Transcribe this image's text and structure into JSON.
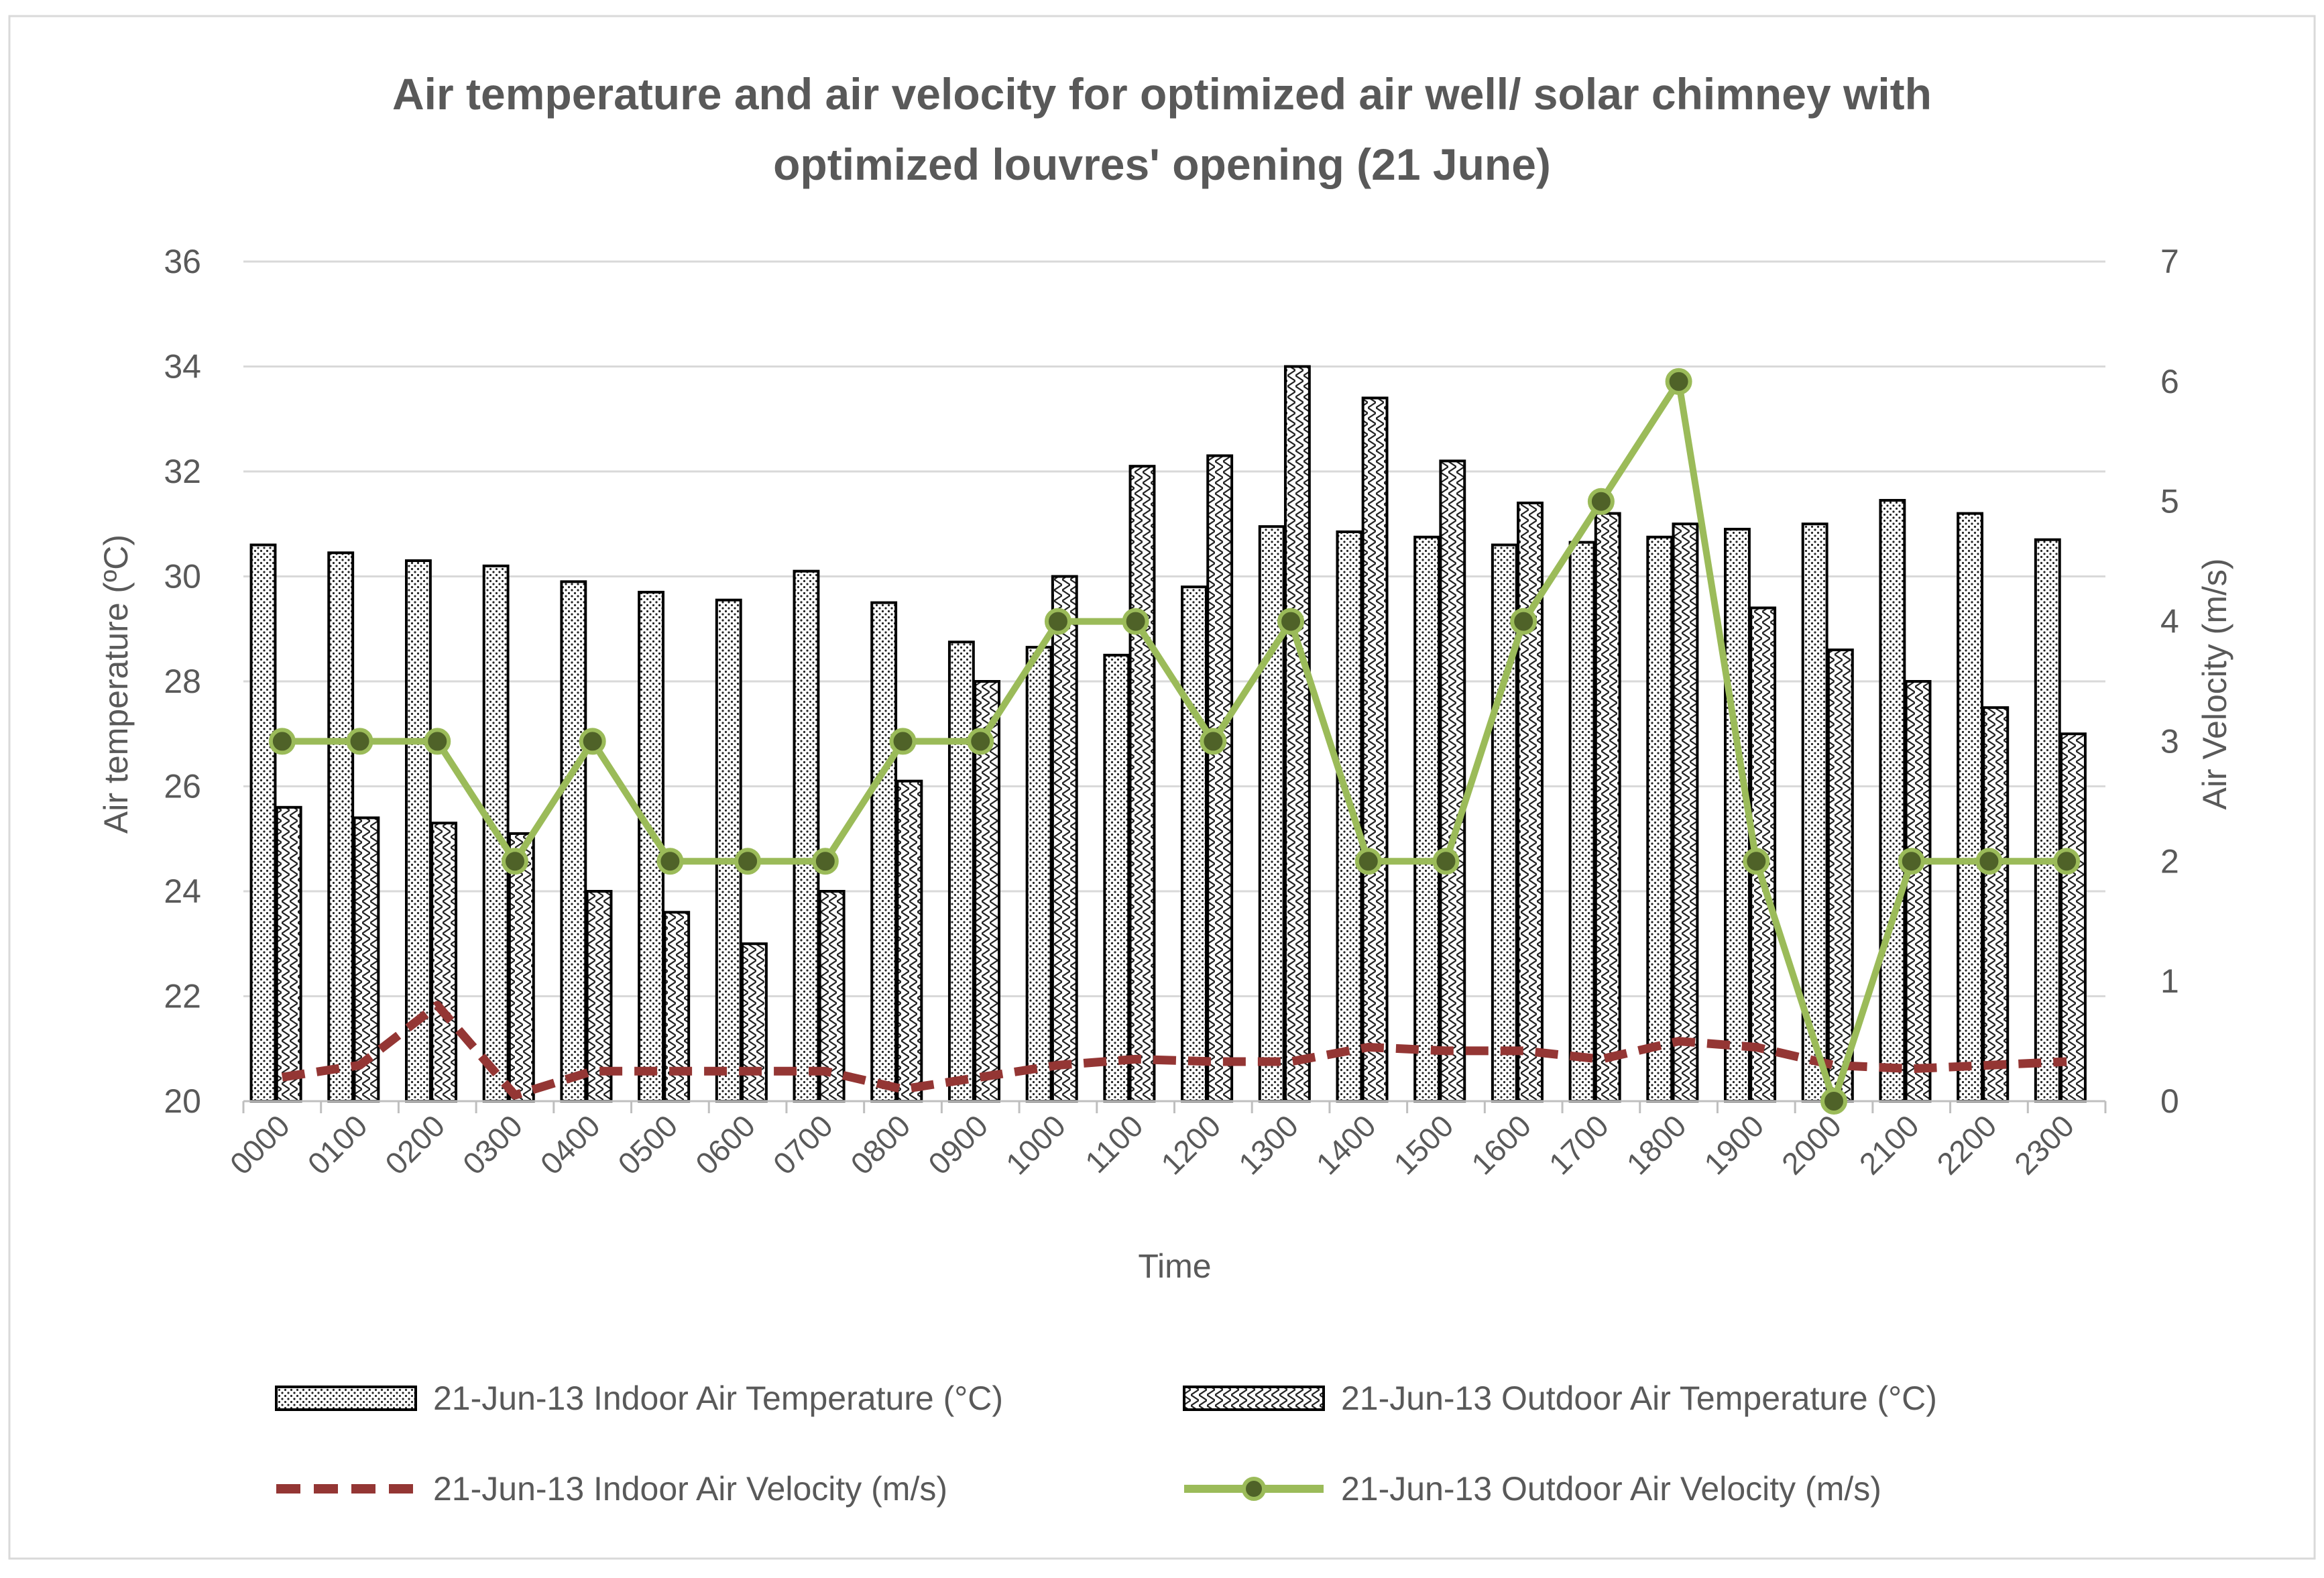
{
  "chart_data": {
    "type": "bar",
    "title_line1": "Air temperature and air velocity for optimized air well/ solar chimney with",
    "title_line2": "optimized louvres' opening (21 June)",
    "xlabel": "Time",
    "ylabel_left": "Air temperature (ºC)",
    "ylabel_right": "Air Velocity (m/s)",
    "ylim_left": [
      20,
      36
    ],
    "yticks_left": [
      "20",
      "22",
      "24",
      "26",
      "28",
      "30",
      "32",
      "34",
      "36"
    ],
    "ylim_right": [
      0,
      7
    ],
    "yticks_right": [
      "0",
      "1",
      "2",
      "3",
      "4",
      "5",
      "6",
      "7"
    ],
    "grid": true,
    "legend_position": "bottom",
    "categories": [
      "0000",
      "0100",
      "0200",
      "0300",
      "0400",
      "0500",
      "0600",
      "0700",
      "0800",
      "0900",
      "1000",
      "1100",
      "1200",
      "1300",
      "1400",
      "1500",
      "1600",
      "1700",
      "1800",
      "1900",
      "2000",
      "2100",
      "2200",
      "2300"
    ],
    "series": [
      {
        "name": "21-Jun-13 Indoor Air Temperature (°C)",
        "kind": "bar",
        "axis": "left",
        "pattern": "dots",
        "values": [
          30.6,
          30.45,
          30.3,
          30.2,
          29.9,
          29.7,
          29.55,
          30.1,
          29.5,
          28.75,
          28.65,
          28.5,
          29.8,
          30.95,
          30.85,
          30.75,
          30.6,
          30.65,
          30.75,
          30.9,
          31.0,
          31.45,
          31.2,
          30.7
        ]
      },
      {
        "name": "21-Jun-13 Outdoor Air Temperature (°C)",
        "kind": "bar",
        "axis": "left",
        "pattern": "zigzag",
        "values": [
          25.6,
          25.4,
          25.3,
          25.1,
          24.0,
          23.6,
          23.0,
          24.0,
          26.1,
          28.0,
          30.0,
          32.1,
          32.3,
          34.0,
          33.4,
          32.2,
          31.4,
          31.2,
          31.0,
          29.4,
          28.6,
          28.0,
          27.5,
          27.0
        ]
      },
      {
        "name": "21-Jun-13 Indoor Air Velocity (m/s)",
        "kind": "line",
        "axis": "right",
        "color": "#943634",
        "values": [
          0.2,
          0.3,
          0.8,
          0.05,
          0.25,
          0.25,
          0.25,
          0.25,
          0.1,
          0.2,
          0.3,
          0.35,
          0.33,
          0.33,
          0.45,
          0.42,
          0.42,
          0.35,
          0.5,
          0.45,
          0.3,
          0.27,
          0.3,
          0.33
        ]
      },
      {
        "name": "21-Jun-13 Outdoor Air Velocity (m/s)",
        "kind": "line",
        "axis": "right",
        "color": "#9bbb59",
        "marker_color": "#4f6228",
        "values": [
          3,
          3,
          3,
          2,
          3,
          2,
          2,
          2,
          3,
          3,
          4,
          4,
          3,
          4,
          2,
          2,
          4,
          5,
          6,
          2,
          0,
          2,
          2,
          2
        ]
      }
    ]
  }
}
